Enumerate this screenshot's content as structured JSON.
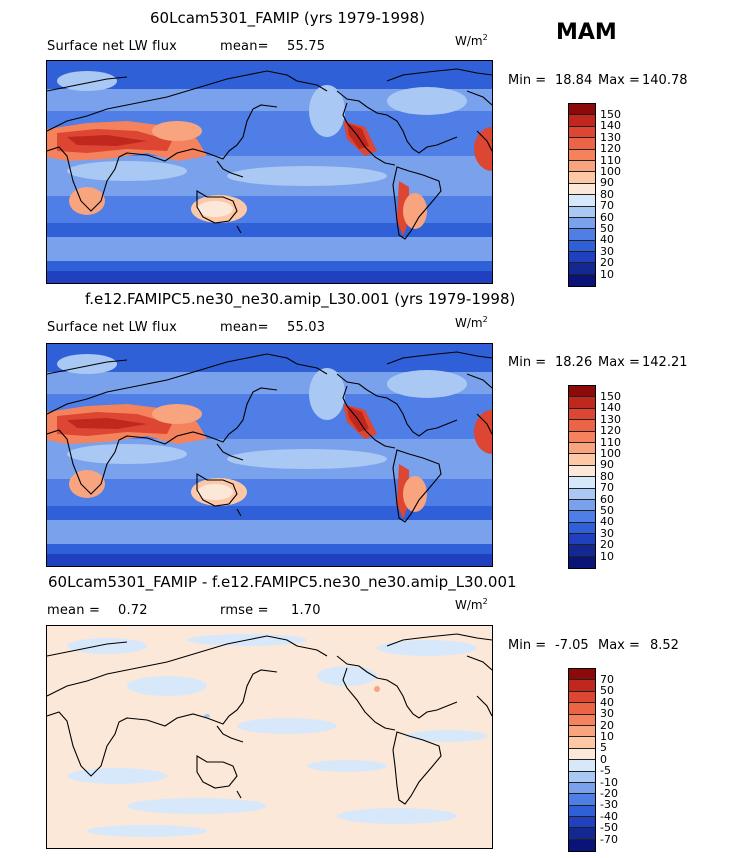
{
  "season": "MAM",
  "panels": [
    {
      "title": "60Lcam5301_FAMIP (yrs 1979-1998)",
      "left_label": "Surface net LW flux",
      "stat_label": "mean=",
      "stat_value": "55.75",
      "units": "W/m",
      "units_exp": "2",
      "min_label": "Min =",
      "min_value": "18.84",
      "max_label": "Max =",
      "max_value": "140.78",
      "levels": [
        "150",
        "140",
        "130",
        "120",
        "110",
        "100",
        "90",
        "80",
        "70",
        "60",
        "50",
        "40",
        "30",
        "20",
        "10"
      ],
      "colors": [
        "#8c0a0a",
        "#c0281e",
        "#dc4632",
        "#ec6446",
        "#f4825c",
        "#f8a47e",
        "#fcc8a6",
        "#fce8d8",
        "#d8e8fb",
        "#aac8f4",
        "#7aa2ec",
        "#4e7ee6",
        "#3060d8",
        "#2040c0",
        "#142892",
        "#0a1478"
      ],
      "map_style": "full"
    },
    {
      "title": "f.e12.FAMIPC5.ne30_ne30.amip_L30.001 (yrs 1979-1998)",
      "left_label": "Surface net LW flux",
      "stat_label": "mean=",
      "stat_value": "55.03",
      "units": "W/m",
      "units_exp": "2",
      "min_label": "Min =",
      "min_value": "18.26",
      "max_label": "Max =",
      "max_value": "142.21",
      "levels": [
        "150",
        "140",
        "130",
        "120",
        "110",
        "100",
        "90",
        "80",
        "70",
        "60",
        "50",
        "40",
        "30",
        "20",
        "10"
      ],
      "colors": [
        "#8c0a0a",
        "#c0281e",
        "#dc4632",
        "#ec6446",
        "#f4825c",
        "#f8a47e",
        "#fcc8a6",
        "#fce8d8",
        "#d8e8fb",
        "#aac8f4",
        "#7aa2ec",
        "#4e7ee6",
        "#3060d8",
        "#2040c0",
        "#142892",
        "#0a1478"
      ],
      "map_style": "full"
    },
    {
      "title": "60Lcam5301_FAMIP - f.e12.FAMIPC5.ne30_ne30.amip_L30.001",
      "left_label": "mean =",
      "left_value": "0.72",
      "stat_label": "rmse =",
      "stat_value": "1.70",
      "units": "W/m",
      "units_exp": "2",
      "min_label": "Min =",
      "min_value": "-7.05",
      "max_label": "Max =",
      "max_value": "8.52",
      "levels": [
        "70",
        "50",
        "40",
        "30",
        "20",
        "10",
        "5",
        "0",
        "-5",
        "-10",
        "-20",
        "-30",
        "-40",
        "-50",
        "-70"
      ],
      "colors": [
        "#8c0a0a",
        "#c0281e",
        "#dc4632",
        "#ec6446",
        "#f4825c",
        "#f8a47e",
        "#fcc8a6",
        "#fce8d8",
        "#d8e8fb",
        "#aac8f4",
        "#7aa2ec",
        "#4e7ee6",
        "#3060d8",
        "#2040c0",
        "#142892",
        "#0a1478"
      ],
      "map_style": "diff"
    }
  ]
}
